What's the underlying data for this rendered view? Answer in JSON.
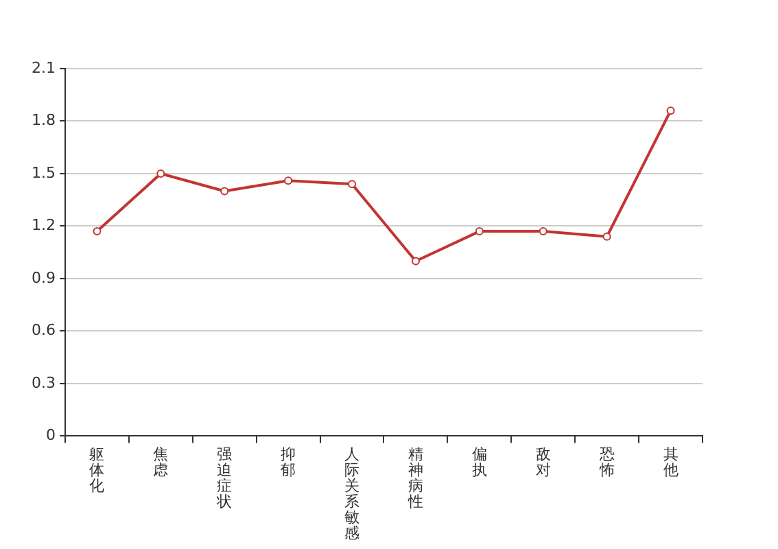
{
  "chart_data": {
    "type": "line",
    "categories": [
      "躯体化",
      "焦虑",
      "强迫症状",
      "抑郁",
      "人际关系敏感",
      "精神病性",
      "偏执",
      "敌对",
      "恐怖",
      "其他"
    ],
    "series": [
      {
        "color": "#c23531",
        "values": [
          1.17,
          1.5,
          1.4,
          1.46,
          1.44,
          1.0,
          1.17,
          1.17,
          1.14,
          1.86
        ]
      }
    ],
    "ylim": [
      0,
      2.1
    ],
    "yticks": [
      0,
      0.3,
      0.6,
      0.9,
      1.2,
      1.5,
      1.8,
      2.1
    ],
    "grid": "y",
    "legend": false,
    "marker": "circle",
    "line_style": "solid"
  }
}
